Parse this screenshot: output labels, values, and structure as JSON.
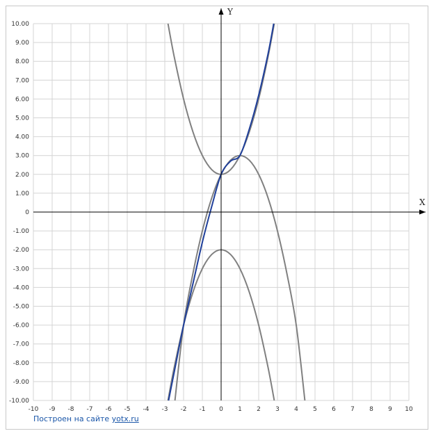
{
  "chart_data": {
    "type": "line",
    "xlabel": "X",
    "ylabel": "Y",
    "xlim": [
      -10,
      10
    ],
    "ylim": [
      -10,
      10
    ],
    "grid": true,
    "x_ticks": [
      "-10",
      "-9",
      "-8",
      "-7",
      "-6",
      "-5",
      "-4",
      "-3",
      "-2",
      "-1",
      "0",
      "1",
      "2",
      "3",
      "4",
      "5",
      "6",
      "7",
      "8",
      "9",
      "10"
    ],
    "y_ticks": [
      "10.00",
      "9.00",
      "8.00",
      "7.00",
      "6.00",
      "5.00",
      "4.00",
      "3.00",
      "2.00",
      "1.00",
      "0",
      "-1.00",
      "-2.00",
      "-3.00",
      "-4.00",
      "-5.00",
      "-6.00",
      "-7.00",
      "-8.00",
      "-9.00",
      "-10.00"
    ],
    "series": [
      {
        "color": "#808080",
        "x": [
          -2.83,
          -2.5,
          -2.0,
          -1.5,
          -1.0,
          -0.5,
          0,
          0.5,
          1.0,
          1.5,
          2.0,
          2.5,
          2.83
        ],
        "y": [
          10.0,
          8.25,
          6.0,
          4.25,
          3.0,
          2.25,
          2.0,
          2.25,
          3.0,
          4.25,
          6.0,
          8.25,
          10.0
        ]
      },
      {
        "color": "#808080",
        "x": [
          -2.83,
          -2.5,
          -2.0,
          -1.5,
          -1.0,
          -0.5,
          0,
          0.5,
          1.0,
          1.5,
          2.0,
          2.5,
          2.83
        ],
        "y": [
          -10.0,
          -8.25,
          -6.0,
          -4.25,
          -3.0,
          -2.25,
          -2.0,
          -2.25,
          -3.0,
          -4.25,
          -6.0,
          -8.25,
          -10.0
        ]
      },
      {
        "color": "#808080",
        "x": [
          -2.46,
          -2.0,
          -1.5,
          -1.0,
          -0.5,
          0,
          0.5,
          1.0,
          1.5,
          2.0,
          2.5,
          3.0,
          3.5,
          4.0,
          4.46
        ],
        "y": [
          -10.0,
          -6.0,
          -3.25,
          -1.0,
          0.75,
          2.0,
          2.75,
          3.0,
          2.75,
          2.0,
          0.75,
          -1.0,
          -3.25,
          -6.0,
          -10.0
        ]
      },
      {
        "color": "#1f3f9a",
        "x": [
          -2.8,
          -2.5,
          -2.0,
          -1.5,
          -1.0,
          -0.5,
          0,
          0.5,
          1.0,
          1.5,
          2.0,
          2.5,
          2.8
        ],
        "y": [
          -10.0,
          -8.5,
          -6.0,
          -3.8,
          -1.6,
          0.3,
          2.0,
          2.7,
          3.0,
          4.4,
          6.2,
          8.4,
          10.0
        ]
      }
    ]
  },
  "credit": {
    "text": "Построен на сайте ",
    "link": "yotx.ru"
  }
}
